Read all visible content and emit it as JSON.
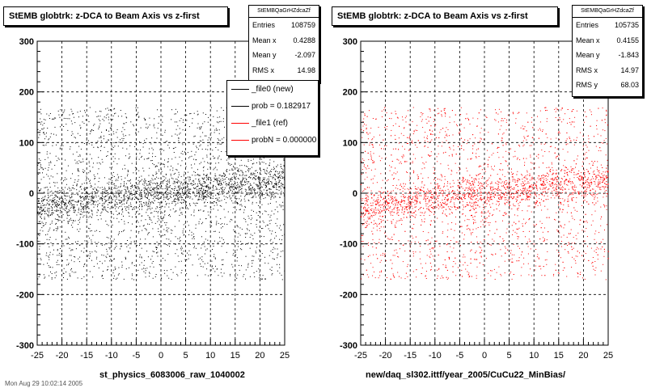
{
  "chart_data": [
    {
      "type": "scatter",
      "title": "StEMB globtrk: z-DCA to Beam Axis vs z-first",
      "xlabel": "st_physics_6083006_raw_1040002",
      "ylabel": "",
      "xlim": [
        -25,
        25
      ],
      "ylim": [
        -300,
        300
      ],
      "xticks": [
        -25,
        -20,
        -15,
        -10,
        -5,
        0,
        5,
        10,
        15,
        20,
        25
      ],
      "yticks": [
        -300,
        -200,
        -100,
        0,
        100,
        200,
        300
      ],
      "grid": true,
      "marker_color": "#000000",
      "stats": {
        "name": "StEMBQaGrHZdcaZf",
        "rows": [
          {
            "label": "Entries",
            "value": "108759"
          },
          {
            "label": "Mean x",
            "value": "0.4288"
          },
          {
            "label": "Mean y",
            "value": "-2.097"
          },
          {
            "label": "RMS x",
            "value": "14.98"
          }
        ]
      },
      "legend": {
        "placement": "top-right",
        "entries": [
          {
            "label": "_file0 (new)",
            "color": "#000000"
          },
          {
            "label": "prob = 0.182917",
            "color": "#000000"
          },
          {
            "label": "_file1 (ref)",
            "color": "#ff0000"
          },
          {
            "label": "probN = 0.000000",
            "color": "#ff0000"
          }
        ]
      },
      "distribution": {
        "description_points": [
          {
            "x": -25,
            "y": -30
          },
          {
            "x": -20,
            "y": -20
          },
          {
            "x": -15,
            "y": -15
          },
          {
            "x": -10,
            "y": -8
          },
          {
            "x": -5,
            "y": -5
          },
          {
            "x": 0,
            "y": 0
          },
          {
            "x": 5,
            "y": 5
          },
          {
            "x": 10,
            "y": 10
          },
          {
            "x": 15,
            "y": 15
          },
          {
            "x": 20,
            "y": 20
          },
          {
            "x": 25,
            "y": 25
          }
        ],
        "y_band": [
          -170,
          170
        ]
      }
    },
    {
      "type": "scatter",
      "title": "StEMB globtrk: z-DCA to Beam Axis vs z-first",
      "xlabel": "new/daq_sl302.ittf/year_2005/CuCu22_MinBias/",
      "ylabel": "",
      "xlim": [
        -25,
        25
      ],
      "ylim": [
        -300,
        300
      ],
      "xticks": [
        -25,
        -20,
        -15,
        -10,
        -5,
        0,
        5,
        10,
        15,
        20,
        25
      ],
      "yticks": [
        -300,
        -200,
        -100,
        0,
        100,
        200,
        300
      ],
      "grid": true,
      "marker_color": "#ff0000",
      "stats": {
        "name": "StEMBQaGrHZdcaZf",
        "rows": [
          {
            "label": "Entries",
            "value": "105735"
          },
          {
            "label": "Mean x",
            "value": "0.4155"
          },
          {
            "label": "Mean y",
            "value": "-1.843"
          },
          {
            "label": "RMS x",
            "value": "14.97"
          },
          {
            "label": "RMS y",
            "value": "68.03"
          }
        ]
      },
      "distribution": {
        "description_points": [
          {
            "x": -25,
            "y": -30
          },
          {
            "x": -20,
            "y": -20
          },
          {
            "x": -15,
            "y": -15
          },
          {
            "x": -10,
            "y": -8
          },
          {
            "x": -5,
            "y": -5
          },
          {
            "x": 0,
            "y": 0
          },
          {
            "x": 5,
            "y": 5
          },
          {
            "x": 10,
            "y": 10
          },
          {
            "x": 15,
            "y": 15
          },
          {
            "x": 20,
            "y": 20
          },
          {
            "x": 25,
            "y": 25
          }
        ],
        "y_band": [
          -170,
          170
        ]
      }
    }
  ],
  "footer_text": "Mon Aug 29 10:02:14 2005"
}
